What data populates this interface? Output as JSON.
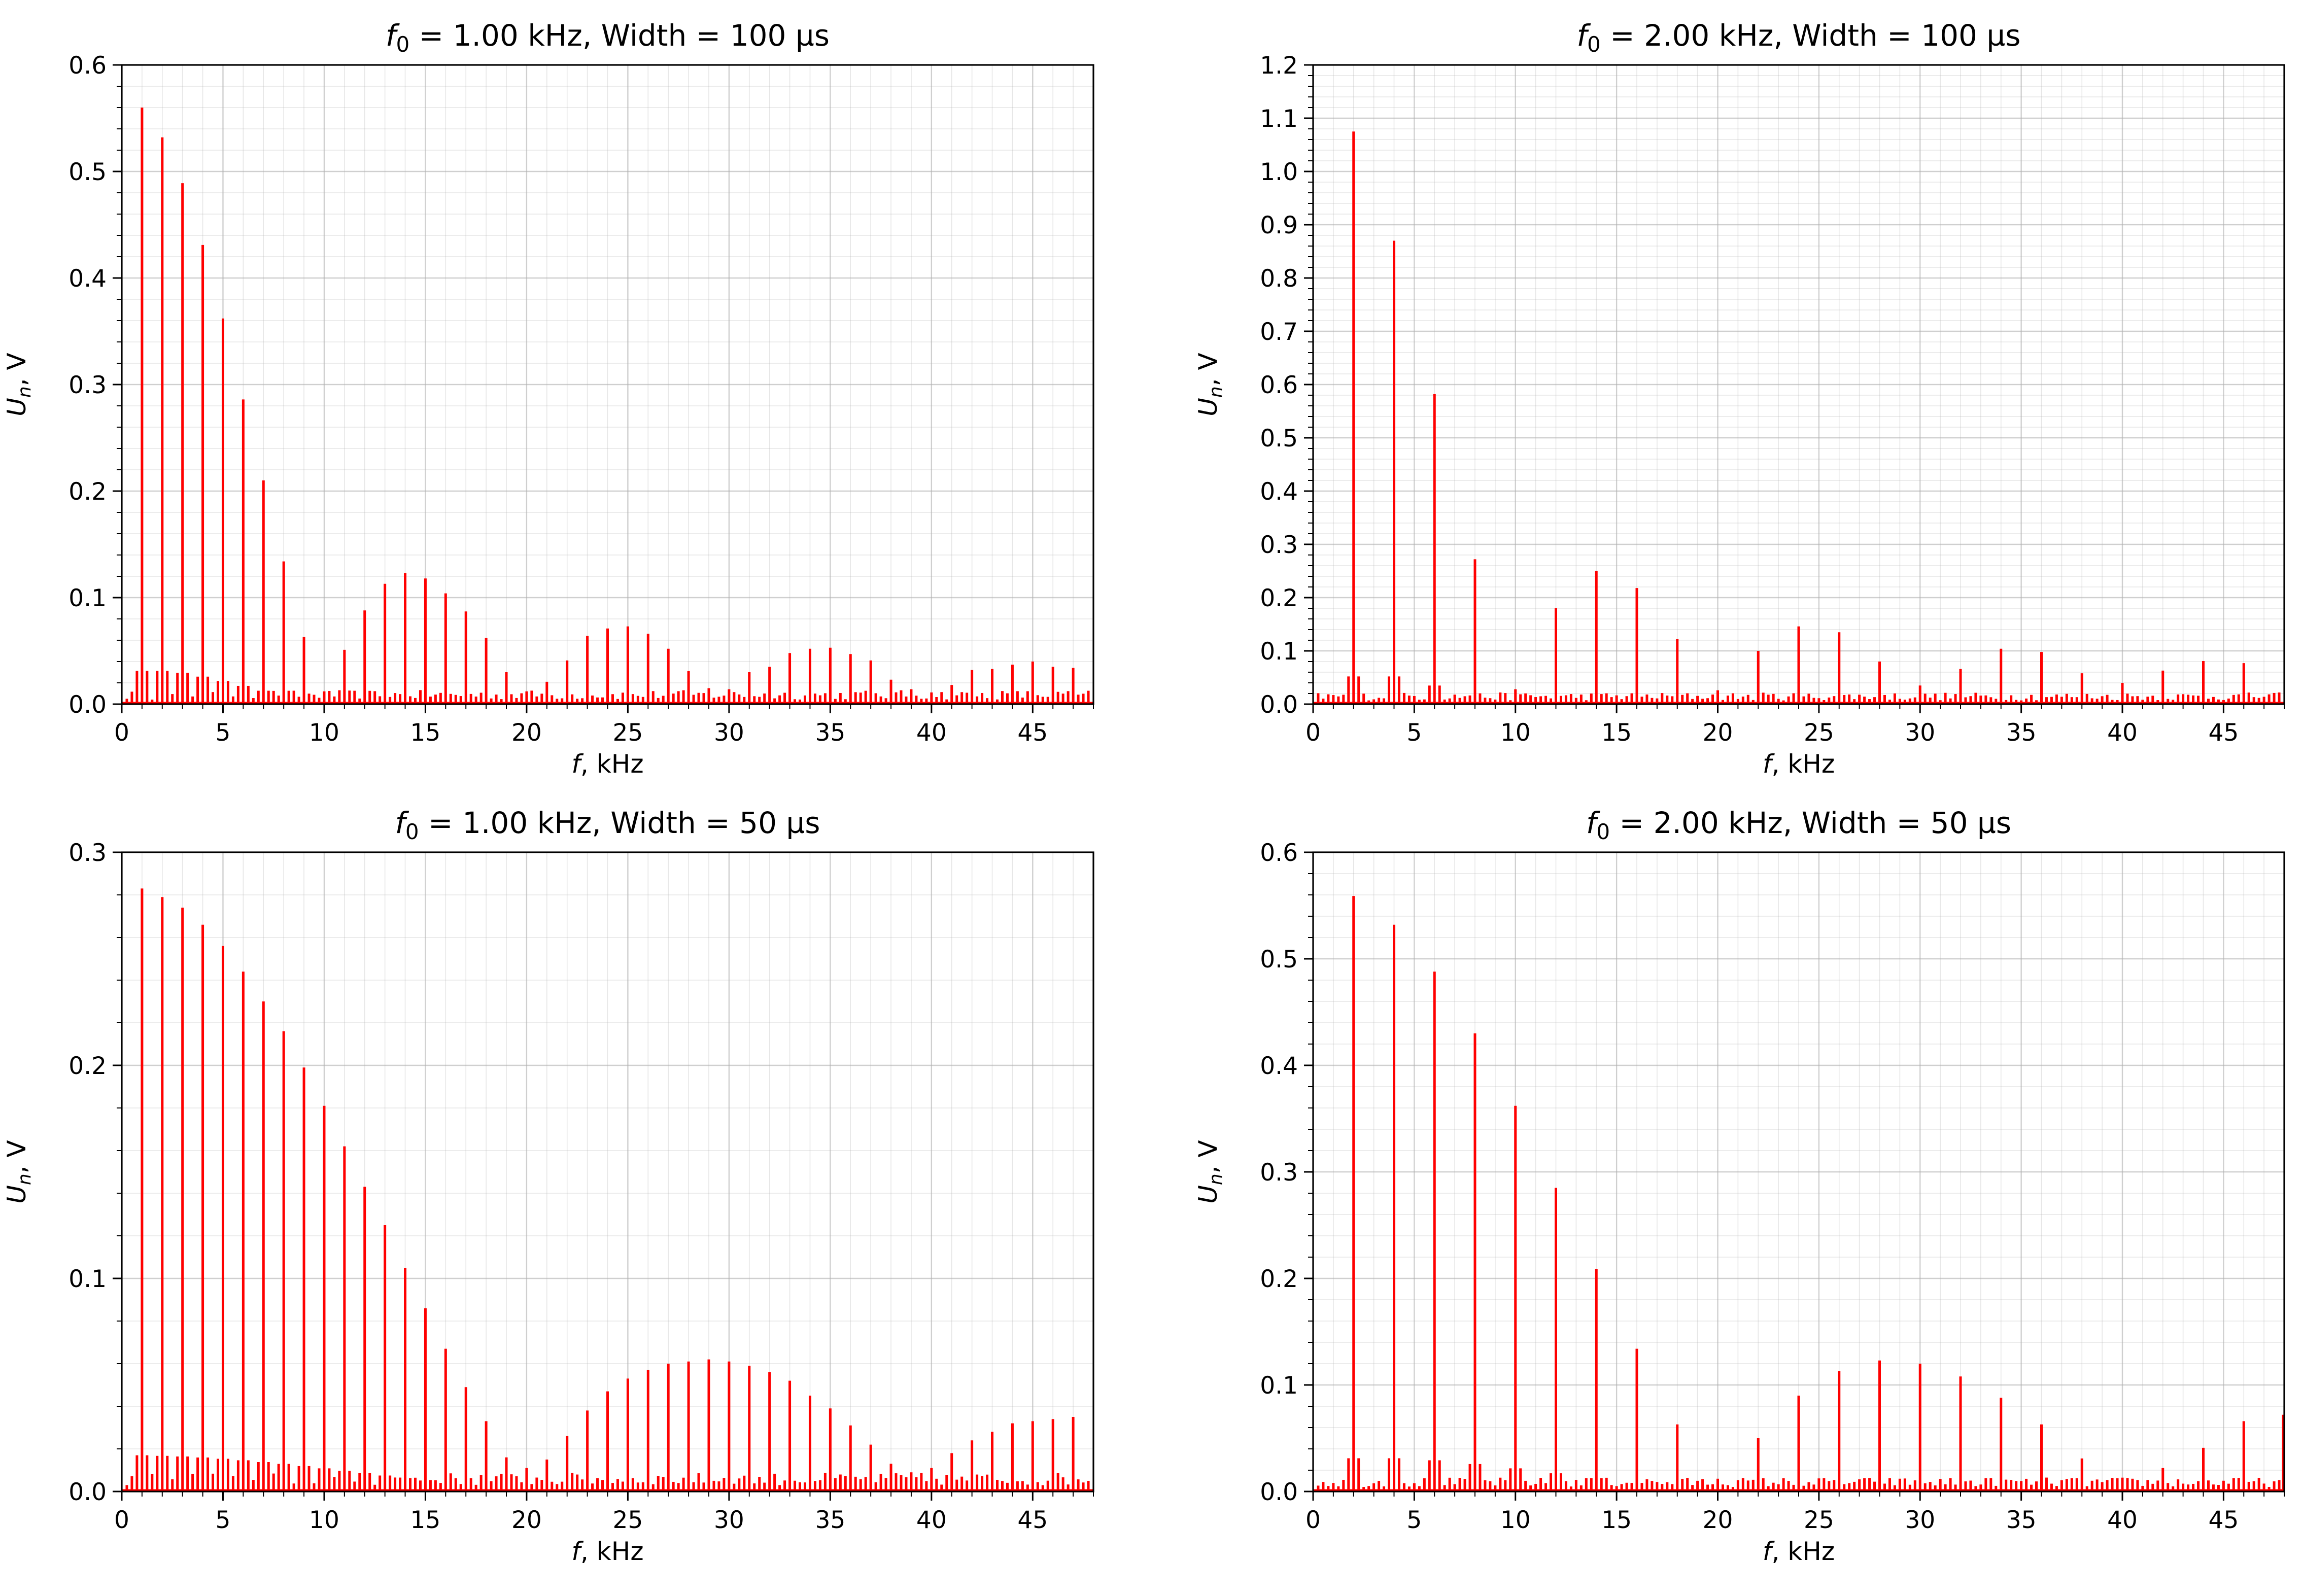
{
  "chart_data": [
    {
      "type": "bar",
      "subtype": "stem",
      "title": "f_0 = 1.00 kHz,  Width = 100 µs",
      "title_parts": {
        "symbol": "f",
        "subscript": "0",
        "rest": " = 1.00 kHz,  Width = 100 µs"
      },
      "xlabel": "f, kHz",
      "ylabel": "U_n, V",
      "xlim": [
        0,
        48
      ],
      "ylim": [
        0,
        0.6
      ],
      "xticks": [
        0,
        5,
        10,
        15,
        20,
        25,
        30,
        35,
        40,
        45
      ],
      "yticks": [
        0.0,
        0.1,
        0.2,
        0.3,
        0.4,
        0.5,
        0.6
      ],
      "ytick_labels": [
        "0.0",
        "0.1",
        "0.2",
        "0.3",
        "0.4",
        "0.5",
        "0.6"
      ],
      "grid": true,
      "color": "#ff0000",
      "harmonic_kHz": [
        1,
        2,
        3,
        4,
        5,
        6,
        7,
        8,
        9,
        10,
        11,
        12,
        13,
        14,
        15,
        16,
        17,
        18,
        19,
        20,
        21,
        22,
        23,
        24,
        25,
        26,
        27,
        28,
        29,
        30,
        31,
        32,
        33,
        34,
        35,
        36,
        37,
        38,
        39,
        40,
        41,
        42,
        43,
        44,
        45,
        46,
        47
      ],
      "values": [
        0.56,
        0.532,
        0.489,
        0.431,
        0.362,
        0.286,
        0.21,
        0.134,
        0.063,
        0.012,
        0.051,
        0.088,
        0.113,
        0.123,
        0.118,
        0.104,
        0.087,
        0.062,
        0.03,
        0.012,
        0.021,
        0.041,
        0.064,
        0.071,
        0.073,
        0.066,
        0.052,
        0.031,
        0.015,
        0.014,
        0.03,
        0.035,
        0.048,
        0.052,
        0.053,
        0.047,
        0.041,
        0.023,
        0.014,
        0.011,
        0.018,
        0.032,
        0.033,
        0.037,
        0.04,
        0.035,
        0.034
      ],
      "noise_level": 0.012
    },
    {
      "type": "bar",
      "subtype": "stem",
      "title": "f_0 = 2.00 kHz,  Width = 100 µs",
      "title_parts": {
        "symbol": "f",
        "subscript": "0",
        "rest": " = 2.00 kHz,  Width = 100 µs"
      },
      "xlabel": "f, kHz",
      "ylabel": "U_n, V",
      "xlim": [
        0,
        48
      ],
      "ylim": [
        0,
        1.2
      ],
      "xticks": [
        0,
        5,
        10,
        15,
        20,
        25,
        30,
        35,
        40,
        45
      ],
      "yticks": [
        0.0,
        0.1,
        0.2,
        0.3,
        0.4,
        0.5,
        0.6,
        0.7,
        0.8,
        0.9,
        1.0,
        1.1,
        1.2
      ],
      "ytick_labels": [
        "0.0",
        "0.1",
        "0.2",
        "0.3",
        "0.4",
        "0.5",
        "0.6",
        "0.7",
        "0.8",
        "0.9",
        "1.0",
        "1.1",
        "1.2"
      ],
      "grid": true,
      "color": "#ff0000",
      "harmonic_kHz": [
        2,
        4,
        6,
        8,
        10,
        12,
        14,
        16,
        18,
        20,
        22,
        24,
        26,
        28,
        30,
        32,
        34,
        36,
        38,
        40,
        42,
        44,
        46
      ],
      "values": [
        1.075,
        0.87,
        0.582,
        0.272,
        0.028,
        0.18,
        0.25,
        0.218,
        0.122,
        0.026,
        0.1,
        0.146,
        0.135,
        0.08,
        0.035,
        0.066,
        0.104,
        0.098,
        0.058,
        0.04,
        0.063,
        0.081,
        0.077
      ],
      "noise_level": 0.02
    },
    {
      "type": "bar",
      "subtype": "stem",
      "title": "f_0 = 1.00 kHz,  Width = 50 µs",
      "title_parts": {
        "symbol": "f",
        "subscript": "0",
        "rest": " = 1.00 kHz,  Width = 50 µs"
      },
      "xlabel": "f, kHz",
      "ylabel": "U_n, V",
      "xlim": [
        0,
        48
      ],
      "ylim": [
        0,
        0.3
      ],
      "xticks": [
        0,
        5,
        10,
        15,
        20,
        25,
        30,
        35,
        40,
        45
      ],
      "yticks": [
        0.0,
        0.1,
        0.2,
        0.3
      ],
      "ytick_labels": [
        "0.0",
        "0.1",
        "0.2",
        "0.3"
      ],
      "grid": true,
      "color": "#ff0000",
      "harmonic_kHz": [
        1,
        2,
        3,
        4,
        5,
        6,
        7,
        8,
        9,
        10,
        11,
        12,
        13,
        14,
        15,
        16,
        17,
        18,
        19,
        20,
        21,
        22,
        23,
        24,
        25,
        26,
        27,
        28,
        29,
        30,
        31,
        32,
        33,
        34,
        35,
        36,
        37,
        38,
        39,
        40,
        41,
        42,
        43,
        44,
        45,
        46,
        47
      ],
      "values": [
        0.283,
        0.279,
        0.274,
        0.266,
        0.256,
        0.244,
        0.23,
        0.216,
        0.199,
        0.181,
        0.162,
        0.143,
        0.125,
        0.105,
        0.086,
        0.067,
        0.049,
        0.033,
        0.016,
        0.011,
        0.015,
        0.026,
        0.038,
        0.047,
        0.053,
        0.057,
        0.06,
        0.061,
        0.062,
        0.061,
        0.059,
        0.056,
        0.052,
        0.045,
        0.039,
        0.031,
        0.022,
        0.013,
        0.009,
        0.011,
        0.018,
        0.024,
        0.028,
        0.032,
        0.033,
        0.034,
        0.035
      ],
      "noise_level": 0.008
    },
    {
      "type": "bar",
      "subtype": "stem",
      "title": "f_0 = 2.00 kHz,  Width = 50 µs",
      "title_parts": {
        "symbol": "f",
        "subscript": "0",
        "rest": " = 2.00 kHz,  Width = 50 µs"
      },
      "xlabel": "f, kHz",
      "ylabel": "U_n, V",
      "xlim": [
        0,
        48
      ],
      "ylim": [
        0,
        0.6
      ],
      "xticks": [
        0,
        5,
        10,
        15,
        20,
        25,
        30,
        35,
        40,
        45
      ],
      "yticks": [
        0.0,
        0.1,
        0.2,
        0.3,
        0.4,
        0.5,
        0.6
      ],
      "ytick_labels": [
        "0.0",
        "0.1",
        "0.2",
        "0.3",
        "0.4",
        "0.5",
        "0.6"
      ],
      "grid": true,
      "color": "#ff0000",
      "harmonic_kHz": [
        2,
        4,
        6,
        8,
        10,
        12,
        14,
        16,
        18,
        20,
        22,
        24,
        26,
        28,
        30,
        32,
        34,
        36,
        38,
        40,
        42,
        44,
        46,
        48
      ],
      "values": [
        0.559,
        0.532,
        0.488,
        0.43,
        0.362,
        0.285,
        0.209,
        0.134,
        0.063,
        0.012,
        0.05,
        0.09,
        0.113,
        0.123,
        0.12,
        0.108,
        0.088,
        0.063,
        0.031,
        0.013,
        0.022,
        0.041,
        0.066,
        0.072
      ],
      "noise_level": 0.012
    }
  ]
}
